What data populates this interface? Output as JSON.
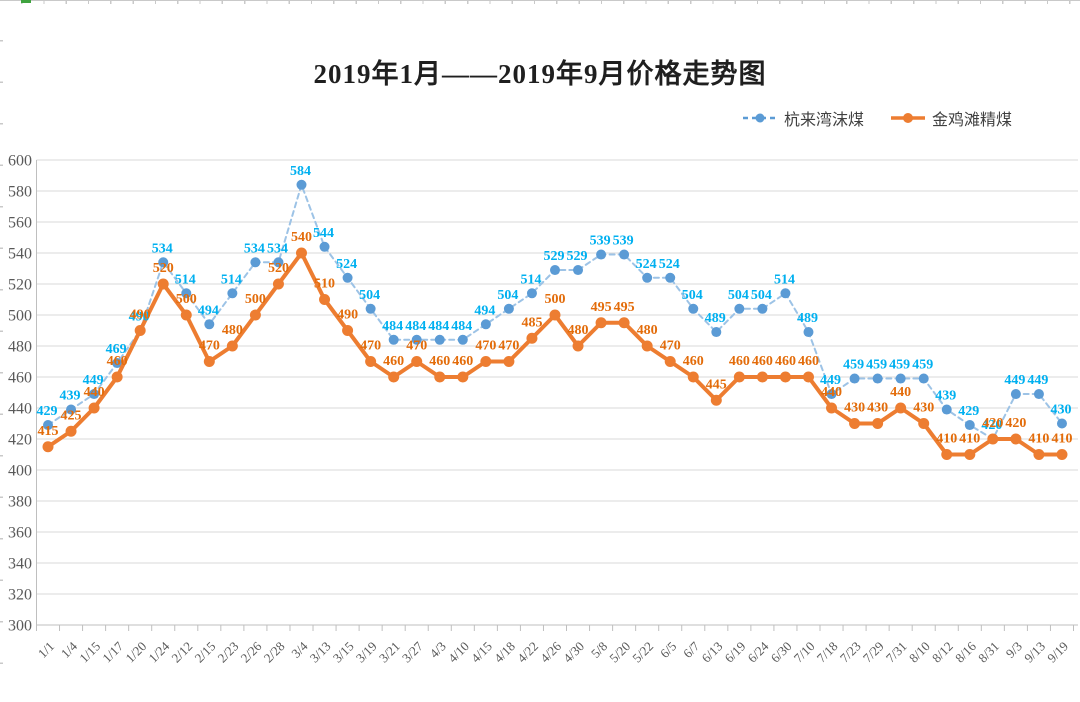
{
  "page": {
    "background": "#ffffff",
    "sheet_edge_color": "#c9c9c9",
    "sheet_selection_mark_color": "#3fa33f"
  },
  "chart_data": {
    "type": "line",
    "title": "2019年1月——2019年9月价格走势图",
    "legend_position": "top-right",
    "grid": "horizontal",
    "y_axis": {
      "min": 300,
      "max": 600,
      "step": 20,
      "tick_labels": [
        "600",
        "580",
        "560",
        "540",
        "520",
        "500",
        "480",
        "460",
        "440",
        "420",
        "400",
        "380",
        "360",
        "340",
        "320",
        "300"
      ]
    },
    "categories": [
      "1/1",
      "1/4",
      "1/15",
      "1/17",
      "1/20",
      "1/24",
      "2/12",
      "2/15",
      "2/23",
      "2/26",
      "2/28",
      "3/4",
      "3/13",
      "3/15",
      "3/19",
      "3/21",
      "3/27",
      "4/3",
      "4/10",
      "4/15",
      "4/18",
      "4/22",
      "4/26",
      "4/30",
      "5/8",
      "5/20",
      "5/22",
      "6/5",
      "6/7",
      "6/13",
      "6/19",
      "6/24",
      "6/30",
      "7/10",
      "7/18",
      "7/23",
      "7/29",
      "7/31",
      "8/10",
      "8/12",
      "8/16",
      "8/31",
      "9/3",
      "9/13",
      "9/19"
    ],
    "series": [
      {
        "name": "杭来湾沫煤",
        "style": "dashed",
        "marker": "round-dot",
        "line_color": "#9dc3e6",
        "dot_color": "#5b9bd5",
        "label_color": "#00b0f0",
        "values": [
          429,
          439,
          449,
          469,
          490,
          534,
          514,
          494,
          514,
          534,
          534,
          584,
          544,
          524,
          504,
          484,
          484,
          484,
          484,
          494,
          504,
          514,
          529,
          529,
          539,
          539,
          524,
          524,
          504,
          489,
          504,
          504,
          514,
          489,
          449,
          459,
          459,
          459,
          459,
          439,
          429,
          420,
          449,
          449,
          430
        ]
      },
      {
        "name": "金鸡滩精煤",
        "style": "solid",
        "marker": "round-dot",
        "line_color": "#ed7d31",
        "dot_color": "#ed7d31",
        "label_color": "#e36c0a",
        "values": [
          415,
          425,
          440,
          460,
          490,
          520,
          500,
          470,
          480,
          500,
          520,
          540,
          510,
          490,
          470,
          460,
          470,
          460,
          460,
          470,
          470,
          485,
          500,
          480,
          495,
          495,
          480,
          470,
          460,
          445,
          460,
          460,
          460,
          460,
          440,
          430,
          430,
          440,
          430,
          410,
          410,
          420,
          420,
          410,
          410
        ]
      }
    ],
    "colors": {
      "gridline": "#d9d9d9",
      "axis_line": "#bfbfbf",
      "tick_text": "#595959",
      "title_text": "#1f1f1f"
    }
  }
}
